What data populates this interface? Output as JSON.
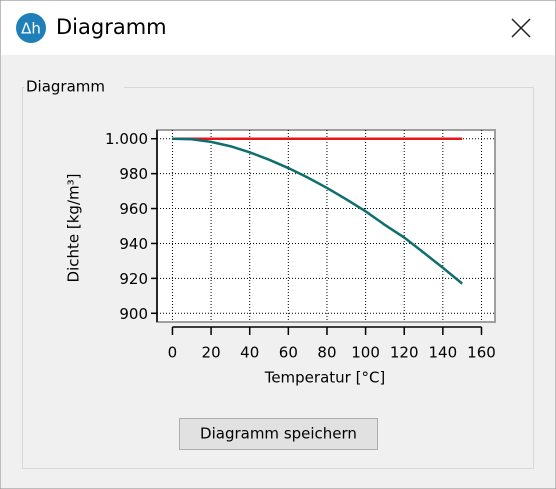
{
  "window": {
    "icon_text": "Δh",
    "title": "Diagramm"
  },
  "group": {
    "label": "Diagramm"
  },
  "button": {
    "label": "Diagramm speichern"
  },
  "chart_data": {
    "type": "line",
    "xlabel": "Temperatur [°C]",
    "ylabel": "Dichte [kg/m³]",
    "x": [
      0,
      10,
      20,
      30,
      40,
      50,
      60,
      70,
      80,
      90,
      100,
      110,
      120,
      130,
      140,
      150
    ],
    "series": [
      {
        "color": "#e8141c",
        "values": [
          1000,
          1000,
          1000,
          1000,
          1000,
          1000,
          1000,
          1000,
          1000,
          1000,
          1000,
          1000,
          1000,
          1000,
          1000,
          1000
        ]
      },
      {
        "color": "#0f6e70",
        "values": [
          1000,
          999.7,
          998.2,
          995.7,
          992.2,
          988,
          983.2,
          977.8,
          971.8,
          965.3,
          958.4,
          950.6,
          943.4,
          934.8,
          926.1,
          917
        ]
      }
    ],
    "xlim": [
      -8,
      167
    ],
    "ylim": [
      895,
      1005
    ],
    "xticks": [
      0,
      20,
      40,
      60,
      80,
      100,
      120,
      140,
      160
    ],
    "yticks": [
      900,
      920,
      940,
      960,
      980,
      {
        "value": 1000,
        "label": "1.000"
      }
    ],
    "grid": true
  }
}
